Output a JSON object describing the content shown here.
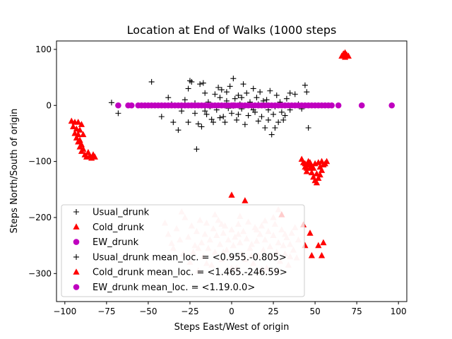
{
  "chart_data": {
    "type": "scatter",
    "title": "Location at End of Walks (1000 steps",
    "xlabel": "Steps East/West of origin",
    "ylabel": "Steps North/South of origin",
    "xlim": [
      -105,
      105
    ],
    "ylim": [
      -350,
      115
    ],
    "xticks": [
      -100,
      -75,
      -50,
      -25,
      0,
      25,
      50,
      75,
      100
    ],
    "yticks": [
      100,
      0,
      -100,
      -200,
      -300
    ],
    "xtick_labels": [
      "−100",
      "−75",
      "−50",
      "−25",
      "0",
      "25",
      "50",
      "75",
      "100"
    ],
    "ytick_labels": [
      "100",
      "0",
      "−100",
      "−200",
      "−300"
    ],
    "grid": false,
    "legend_placement": "lower-left",
    "colors": {
      "usual": "#000000",
      "cold": "#ff0000",
      "ew": "#bf00bf",
      "cold_mean": "#ffcccc"
    },
    "series": [
      {
        "name": "Usual_drunk",
        "marker": "plus",
        "color": "#000000",
        "points": [
          [
            -72,
            5
          ],
          [
            -68,
            -14
          ],
          [
            -48,
            42
          ],
          [
            -42,
            -20
          ],
          [
            -38,
            14
          ],
          [
            -36,
            2
          ],
          [
            -32,
            -44
          ],
          [
            -30,
            -10
          ],
          [
            -28,
            10
          ],
          [
            -26,
            30
          ],
          [
            -26,
            -30
          ],
          [
            -25,
            44
          ],
          [
            -24,
            42
          ],
          [
            -22,
            4
          ],
          [
            -21,
            -78
          ],
          [
            -20,
            -33
          ],
          [
            -19,
            38
          ],
          [
            -18,
            -38
          ],
          [
            -17,
            40
          ],
          [
            -16,
            22
          ],
          [
            -15,
            -16
          ],
          [
            -14,
            6
          ],
          [
            -13,
            -2
          ],
          [
            -12,
            -25
          ],
          [
            -10,
            20
          ],
          [
            -9,
            -8
          ],
          [
            -8,
            32
          ],
          [
            -7,
            14
          ],
          [
            -6,
            28
          ],
          [
            -5,
            -20
          ],
          [
            -4,
            -30
          ],
          [
            -3,
            8
          ],
          [
            -2,
            -5
          ],
          [
            -1,
            34
          ],
          [
            0,
            -14
          ],
          [
            1,
            48
          ],
          [
            2,
            12
          ],
          [
            3,
            -26
          ],
          [
            4,
            18
          ],
          [
            5,
            2
          ],
          [
            6,
            -6
          ],
          [
            7,
            38
          ],
          [
            8,
            -34
          ],
          [
            9,
            22
          ],
          [
            10,
            -18
          ],
          [
            11,
            6
          ],
          [
            12,
            -2
          ],
          [
            13,
            30
          ],
          [
            14,
            -12
          ],
          [
            15,
            14
          ],
          [
            16,
            -28
          ],
          [
            17,
            24
          ],
          [
            18,
            -20
          ],
          [
            19,
            8
          ],
          [
            20,
            -40
          ],
          [
            21,
            10
          ],
          [
            22,
            -8
          ],
          [
            23,
            26
          ],
          [
            24,
            -52
          ],
          [
            25,
            -16
          ],
          [
            26,
            -40
          ],
          [
            27,
            18
          ],
          [
            28,
            -30
          ],
          [
            29,
            6
          ],
          [
            30,
            -12
          ],
          [
            32,
            -18
          ],
          [
            33,
            12
          ],
          [
            35,
            -8
          ],
          [
            38,
            20
          ],
          [
            40,
            2
          ],
          [
            42,
            -6
          ],
          [
            44,
            36
          ],
          [
            46,
            -40
          ],
          [
            45,
            24
          ],
          [
            -30,
            0
          ],
          [
            -22,
            -14
          ],
          [
            -11,
            -30
          ],
          [
            -3,
            24
          ],
          [
            6,
            14
          ],
          [
            16,
            2
          ],
          [
            26,
            -2
          ],
          [
            35,
            22
          ],
          [
            -16,
            -10
          ],
          [
            -7,
            -22
          ],
          [
            4,
            -16
          ],
          [
            13,
            -8
          ],
          [
            22,
            -26
          ],
          [
            31,
            -26
          ],
          [
            -35,
            -30
          ]
        ]
      },
      {
        "name": "Cold_drunk",
        "marker": "triangle",
        "color": "#ff0000",
        "points": [
          [
            -96,
            -28
          ],
          [
            -95,
            -38
          ],
          [
            -94,
            -50
          ],
          [
            -93,
            -58
          ],
          [
            -92,
            -30
          ],
          [
            -92,
            -65
          ],
          [
            -91,
            -44
          ],
          [
            -91,
            -74
          ],
          [
            -90,
            -34
          ],
          [
            -90,
            -82
          ],
          [
            -89,
            -52
          ],
          [
            -88,
            -88
          ],
          [
            -87,
            -92
          ],
          [
            -86,
            -84
          ],
          [
            -85,
            -90
          ],
          [
            -84,
            -94
          ],
          [
            -83,
            -88
          ],
          [
            -82,
            -92
          ],
          [
            -94,
            -30
          ],
          [
            -93,
            -42
          ],
          [
            -92,
            -52
          ],
          [
            -91,
            -62
          ],
          [
            -90,
            -70
          ],
          [
            -89,
            -78
          ],
          [
            66,
            88
          ],
          [
            67,
            92
          ],
          [
            68,
            86
          ],
          [
            69,
            90
          ],
          [
            70,
            88
          ],
          [
            68,
            94
          ],
          [
            42,
            -96
          ],
          [
            43,
            -102
          ],
          [
            44,
            -110
          ],
          [
            45,
            -118
          ],
          [
            44,
            -104
          ],
          [
            46,
            -106
          ],
          [
            47,
            -112
          ],
          [
            48,
            -120
          ],
          [
            49,
            -128
          ],
          [
            50,
            -134
          ],
          [
            51,
            -138
          ],
          [
            52,
            -130
          ],
          [
            53,
            -124
          ],
          [
            54,
            -116
          ],
          [
            55,
            -106
          ],
          [
            56,
            -104
          ],
          [
            57,
            -100
          ],
          [
            46,
            -100
          ],
          [
            48,
            -108
          ],
          [
            50,
            -104
          ],
          [
            52,
            -102
          ],
          [
            54,
            -100
          ],
          [
            53,
            -110
          ],
          [
            51,
            -122
          ],
          [
            49,
            -112
          ],
          [
            47,
            -102
          ],
          [
            45,
            -112
          ],
          [
            0,
            -160
          ],
          [
            8,
            -170
          ],
          [
            30,
            -195
          ],
          [
            43,
            -213
          ],
          [
            47,
            -228
          ],
          [
            44,
            -250
          ],
          [
            52,
            -250
          ],
          [
            55,
            -245
          ],
          [
            48,
            -268
          ],
          [
            54,
            -268
          ]
        ]
      },
      {
        "name": "EW_drunk",
        "marker": "circle",
        "color": "#bf00bf",
        "x_values": [
          -68,
          -62,
          -60,
          -56,
          -54,
          -52,
          -50,
          -48,
          -46,
          -44,
          -42,
          -40,
          -38,
          -36,
          -34,
          -32,
          -30,
          -28,
          -26,
          -24,
          -22,
          -20,
          -18,
          -16,
          -14,
          -12,
          -10,
          -8,
          -6,
          -4,
          -2,
          0,
          2,
          4,
          6,
          8,
          10,
          12,
          14,
          16,
          18,
          20,
          22,
          24,
          26,
          28,
          30,
          32,
          34,
          36,
          38,
          40,
          42,
          44,
          46,
          48,
          50,
          52,
          54,
          56,
          58,
          60,
          64,
          78,
          96
        ],
        "y_value": 0
      },
      {
        "name": "Usual_drunk mean_loc. = <0.955.-0.805>",
        "marker": "plus",
        "color": "#000000",
        "points": [
          [
            0.955,
            -0.805
          ]
        ]
      },
      {
        "name": "Cold_drunk mean_loc. = <1.465.-246.59>",
        "marker": "triangle",
        "color": "#ffcccc",
        "points": [
          [
            -40,
            -210
          ],
          [
            -38,
            -230
          ],
          [
            -35,
            -255
          ],
          [
            -33,
            -220
          ],
          [
            -31,
            -240
          ],
          [
            -29,
            -265
          ],
          [
            -28,
            -200
          ],
          [
            -26,
            -235
          ],
          [
            -25,
            -280
          ],
          [
            -24,
            -215
          ],
          [
            -22,
            -250
          ],
          [
            -21,
            -225
          ],
          [
            -20,
            -295
          ],
          [
            -19,
            -205
          ],
          [
            -18,
            -245
          ],
          [
            -17,
            -270
          ],
          [
            -16,
            -230
          ],
          [
            -15,
            -210
          ],
          [
            -14,
            -255
          ],
          [
            -13,
            -240
          ],
          [
            -12,
            -285
          ],
          [
            -11,
            -220
          ],
          [
            -10,
            -262
          ],
          [
            -9,
            -232
          ],
          [
            -8,
            -205
          ],
          [
            -7,
            -248
          ],
          [
            -6,
            -275
          ],
          [
            -5,
            -228
          ],
          [
            -4,
            -215
          ],
          [
            -3,
            -258
          ],
          [
            -2,
            -240
          ],
          [
            -1,
            -270
          ],
          [
            0,
            -222
          ],
          [
            1,
            -250
          ],
          [
            2,
            -235
          ],
          [
            3,
            -290
          ],
          [
            4,
            -212
          ],
          [
            5,
            -245
          ],
          [
            6,
            -265
          ],
          [
            7,
            -225
          ],
          [
            8,
            -275
          ],
          [
            9,
            -238
          ],
          [
            10,
            -208
          ],
          [
            11,
            -255
          ],
          [
            12,
            -248
          ],
          [
            13,
            -282
          ],
          [
            14,
            -218
          ],
          [
            15,
            -242
          ],
          [
            16,
            -268
          ],
          [
            17,
            -230
          ],
          [
            18,
            -215
          ],
          [
            19,
            -258
          ],
          [
            20,
            -240
          ],
          [
            21,
            -290
          ],
          [
            22,
            -225
          ],
          [
            23,
            -252
          ],
          [
            24,
            -270
          ],
          [
            25,
            -232
          ],
          [
            26,
            -212
          ],
          [
            27,
            -262
          ],
          [
            28,
            -245
          ],
          [
            29,
            -278
          ],
          [
            30,
            -222
          ],
          [
            31,
            -250
          ],
          [
            32,
            -265
          ],
          [
            33,
            -236
          ],
          [
            34,
            -285
          ],
          [
            35,
            -248
          ],
          [
            36,
            -228
          ],
          [
            37,
            -258
          ],
          [
            38,
            -218
          ],
          [
            39,
            -272
          ],
          [
            40,
            -240
          ],
          [
            -30,
            -190
          ],
          [
            -20,
            -255
          ],
          [
            -10,
            -195
          ],
          [
            -5,
            -262
          ],
          [
            5,
            -198
          ],
          [
            15,
            -222
          ],
          [
            25,
            -200
          ],
          [
            28,
            -186
          ],
          [
            -6,
            -212
          ],
          [
            12,
            -268
          ],
          [
            20,
            -206
          ],
          [
            32,
            -230
          ],
          [
            -36,
            -246
          ],
          [
            -15,
            -282
          ],
          [
            0,
            -290
          ],
          [
            18,
            -292
          ],
          [
            27,
            -296
          ],
          [
            35,
            -270
          ],
          [
            4,
            -230
          ],
          [
            -23,
            -262
          ]
        ]
      },
      {
        "name": "EW_drunk mean_loc. = <1.19.0.0>",
        "marker": "circle",
        "color": "#bf00bf",
        "points": [
          [
            1.19,
            0.0
          ]
        ]
      }
    ]
  }
}
